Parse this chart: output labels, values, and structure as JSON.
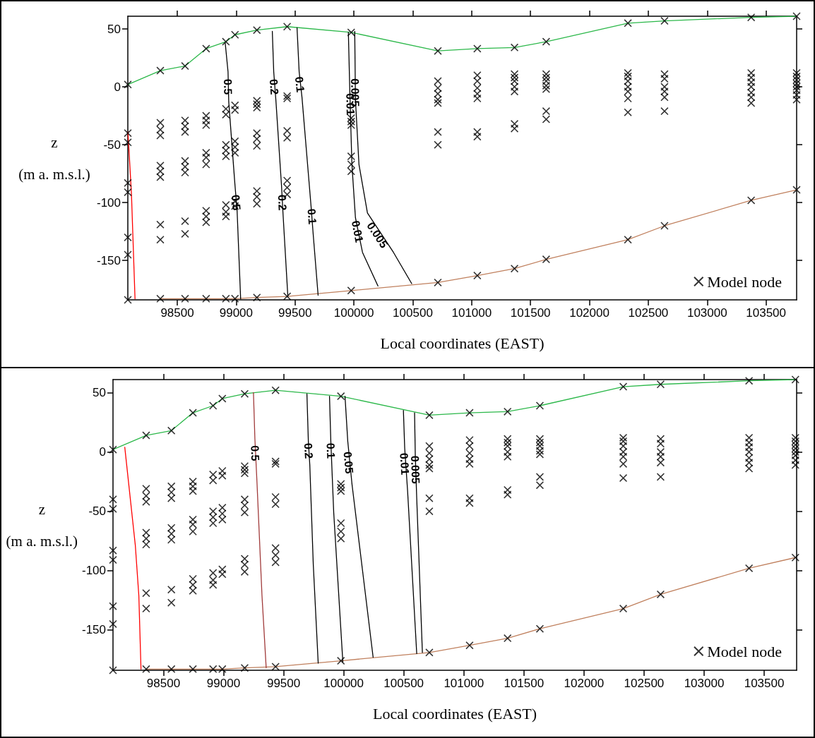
{
  "chart_data": [
    {
      "type": "line",
      "xlabel": "Local coordinates (EAST)",
      "ylabel": "z\n(m a. m.s.l.)",
      "xlim": [
        98080,
        103760
      ],
      "xticks": [
        98500,
        99000,
        99500,
        100000,
        100500,
        101000,
        101500,
        102000,
        102500,
        103000,
        103500
      ],
      "ylim": [
        -184,
        61
      ],
      "yticks": [
        -150,
        -100,
        -50,
        0,
        50
      ],
      "legend": "bottom right",
      "series": [
        {
          "name": "Model node",
          "type": "scatter",
          "marker": "cross",
          "color": "#000000",
          "x": [
            98080,
            98080,
            98080,
            98080,
            98080,
            98080,
            98080,
            98080,
            98356,
            98356,
            98356,
            98356,
            98356,
            98356,
            98356,
            98356,
            98356,
            98356,
            98566,
            98566,
            98566,
            98566,
            98566,
            98566,
            98566,
            98566,
            98566,
            98566,
            98745,
            98745,
            98745,
            98745,
            98745,
            98745,
            98745,
            98745,
            98745,
            98745,
            98745,
            98913,
            98913,
            98913,
            98913,
            98913,
            98913,
            98913,
            98913,
            98913,
            98913,
            98990,
            98990,
            98990,
            98990,
            98990,
            98990,
            98990,
            98990,
            98990,
            99176,
            99176,
            99176,
            99176,
            99176,
            99176,
            99176,
            99176,
            99176,
            99176,
            99176,
            99433,
            99433,
            99433,
            99433,
            99433,
            99433,
            99433,
            99433,
            99433,
            99977,
            99977,
            99977,
            99977,
            99977,
            99977,
            99977,
            99977,
            100713,
            100713,
            100713,
            100713,
            100713,
            100713,
            100713,
            100713,
            100713,
            101048,
            101048,
            101048,
            101048,
            101048,
            101048,
            101048,
            101048,
            101048,
            101364,
            101364,
            101364,
            101364,
            101364,
            101364,
            101364,
            101364,
            101364,
            101633,
            101633,
            101633,
            101633,
            101633,
            101633,
            101633,
            101633,
            101633,
            102327,
            102327,
            102327,
            102327,
            102327,
            102327,
            102327,
            102327,
            102327,
            102638,
            102638,
            102638,
            102638,
            102638,
            102638,
            102638,
            102638,
            103374,
            103374,
            103374,
            103374,
            103374,
            103374,
            103374,
            103374,
            103374,
            103760,
            103760,
            103760,
            103760,
            103760,
            103760,
            103760,
            103760,
            103760,
            103760
          ],
          "values": [
            2,
            -40,
            -48,
            -83,
            -91,
            -130,
            -145,
            -184,
            14,
            -31,
            -37,
            -42,
            -68,
            -73,
            -78,
            -119,
            -132,
            -183,
            18,
            -29,
            -34,
            -39,
            -64,
            -69,
            -74,
            -116,
            -127,
            -183,
            33,
            -25,
            -29,
            -33,
            -57,
            -61,
            -67,
            -107,
            -112,
            -117,
            -183,
            39,
            -19,
            -24,
            -50,
            -55,
            -60,
            -102,
            -108,
            -112,
            -183,
            45,
            -16,
            -20,
            -47,
            -52,
            -57,
            -99,
            -103,
            -183,
            49,
            -12,
            -15,
            -18,
            -40,
            -45,
            -51,
            -90,
            -95,
            -101,
            -182,
            52,
            -8,
            -10,
            -38,
            -44,
            -81,
            -87,
            -93,
            -181,
            47,
            -27,
            -30,
            -33,
            -60,
            -67,
            -73,
            -176,
            31,
            5,
            -1,
            -6,
            -11,
            -14,
            -39,
            -50,
            -169,
            33,
            10,
            5,
            -1,
            -6,
            -10,
            -39,
            -43,
            -163,
            34,
            11,
            8,
            5,
            0,
            -4,
            -32,
            -36,
            -157,
            39,
            11,
            8,
            5,
            1,
            -2,
            -21,
            -28,
            -149,
            55,
            12,
            9,
            5,
            0,
            -4,
            -10,
            -22,
            -132,
            57,
            11,
            7,
            0,
            -4,
            -9,
            -21,
            -120,
            60,
            12,
            8,
            4,
            0,
            -5,
            -9,
            -14,
            -98,
            61,
            12,
            9,
            6,
            3,
            0,
            -3,
            -7,
            -11,
            -89
          ]
        },
        {
          "color": "#2cb84a",
          "marker": "none",
          "x": [
            98080,
            98356,
            98566,
            98745,
            98913,
            98990,
            99176,
            99433,
            99977,
            100713,
            101048,
            101364,
            101633,
            102327,
            102638,
            103374,
            103760
          ],
          "values": [
            2,
            14,
            18,
            33,
            39,
            45,
            49,
            52,
            47,
            31,
            33,
            34,
            39,
            55,
            57,
            60,
            61
          ]
        },
        {
          "color": "#c0805e",
          "marker": "none",
          "x": [
            98356,
            98566,
            98745,
            98913,
            98990,
            99176,
            99433,
            99977,
            100713,
            101048,
            101364,
            101633,
            102327,
            102638,
            103374,
            103760
          ],
          "values": [
            -183,
            -183,
            -183,
            -183,
            -183,
            -182,
            -181,
            -176,
            -169,
            -163,
            -157,
            -149,
            -132,
            -120,
            -98,
            -89
          ]
        },
        {
          "color": "#ff0000",
          "marker": "none",
          "x": [
            98081,
            98111,
            98141
          ],
          "values": [
            -39,
            -93,
            -183
          ]
        },
        {
          "color": "#000000",
          "marker": "none",
          "x": [
            98907,
            98931,
            98937,
            98990,
            99008,
            99038
          ],
          "values": [
            38,
            13,
            -13,
            -85,
            -107,
            -183
          ]
        },
        {
          "color": "#000000",
          "marker": "none",
          "x": [
            99307,
            99319,
            99337,
            99385,
            99397,
            99439
          ],
          "values": [
            48,
            13,
            -11,
            -85,
            -108,
            -181
          ]
        },
        {
          "color": "#000000",
          "marker": "none",
          "x": [
            99517,
            99535,
            99559,
            99636,
            99654,
            99696
          ],
          "values": [
            51,
            13,
            -9,
            -103,
            -127,
            -180
          ]
        },
        {
          "color": "#000000",
          "marker": "none",
          "x": [
            99953,
            99965,
            99983,
            100013,
            100073,
            100204
          ],
          "values": [
            47,
            -3,
            -67,
            -113,
            -143,
            -172
          ]
        },
        {
          "color": "#000000",
          "marker": "none",
          "x": [
            100007,
            100013,
            100043,
            100115,
            100336,
            100491
          ],
          "values": [
            48,
            -11,
            -67,
            -109,
            -143,
            -170
          ]
        }
      ],
      "annotations": [
        {
          "text": "0.5",
          "x": 98930,
          "y": 0
        },
        {
          "text": "0.5",
          "x": 99000,
          "y": -100
        },
        {
          "text": "0.2",
          "x": 99322,
          "y": 0
        },
        {
          "text": "0.2",
          "x": 99392,
          "y": -100
        },
        {
          "text": "0.1",
          "x": 99540,
          "y": 2
        },
        {
          "text": "0.1",
          "x": 99645,
          "y": -112
        },
        {
          "text": "0.005",
          "x": 100010,
          "y": -5
        },
        {
          "text": "0.01",
          "x": 99970,
          "y": -15
        },
        {
          "text": "0.01",
          "x": 100030,
          "y": -125
        },
        {
          "text": "0.005",
          "x": 100200,
          "y": -128
        }
      ]
    },
    {
      "type": "line",
      "xlabel": "Local coordinates (EAST)",
      "ylabel": "z\n(m a. m.s.l.)",
      "xlim": [
        98080,
        103770
      ],
      "xticks": [
        98500,
        99000,
        99500,
        100000,
        100500,
        101000,
        101500,
        102000,
        102500,
        103000,
        103500
      ],
      "ylim": [
        -184,
        61
      ],
      "yticks": [
        -150,
        -100,
        -50,
        0,
        50
      ],
      "legend": "bottom right",
      "series": [
        {
          "name": "Model node",
          "type": "scatter",
          "marker": "cross",
          "color": "#000000",
          "x": [
            98080,
            98080,
            98080,
            98080,
            98080,
            98080,
            98080,
            98080,
            98356,
            98356,
            98356,
            98356,
            98356,
            98356,
            98356,
            98356,
            98356,
            98356,
            98566,
            98566,
            98566,
            98566,
            98566,
            98566,
            98566,
            98566,
            98566,
            98566,
            98745,
            98745,
            98745,
            98745,
            98745,
            98745,
            98745,
            98745,
            98745,
            98745,
            98745,
            98913,
            98913,
            98913,
            98913,
            98913,
            98913,
            98913,
            98913,
            98913,
            98913,
            98990,
            98990,
            98990,
            98990,
            98990,
            98990,
            98990,
            98990,
            98990,
            99176,
            99176,
            99176,
            99176,
            99176,
            99176,
            99176,
            99176,
            99176,
            99176,
            99176,
            99433,
            99433,
            99433,
            99433,
            99433,
            99433,
            99433,
            99433,
            99433,
            99977,
            99977,
            99977,
            99977,
            99977,
            99977,
            99977,
            99977,
            100713,
            100713,
            100713,
            100713,
            100713,
            100713,
            100713,
            100713,
            100713,
            101048,
            101048,
            101048,
            101048,
            101048,
            101048,
            101048,
            101048,
            101048,
            101364,
            101364,
            101364,
            101364,
            101364,
            101364,
            101364,
            101364,
            101364,
            101633,
            101633,
            101633,
            101633,
            101633,
            101633,
            101633,
            101633,
            101633,
            102327,
            102327,
            102327,
            102327,
            102327,
            102327,
            102327,
            102327,
            102327,
            102638,
            102638,
            102638,
            102638,
            102638,
            102638,
            102638,
            102638,
            103374,
            103374,
            103374,
            103374,
            103374,
            103374,
            103374,
            103374,
            103374,
            103760,
            103760,
            103760,
            103760,
            103760,
            103760,
            103760,
            103760,
            103760,
            103760
          ],
          "values": [
            2,
            -40,
            -48,
            -83,
            -91,
            -130,
            -145,
            -184,
            14,
            -31,
            -37,
            -42,
            -68,
            -73,
            -78,
            -119,
            -132,
            -183,
            18,
            -29,
            -34,
            -39,
            -64,
            -69,
            -74,
            -116,
            -127,
            -183,
            33,
            -25,
            -29,
            -33,
            -57,
            -61,
            -67,
            -107,
            -112,
            -117,
            -183,
            39,
            -19,
            -24,
            -50,
            -55,
            -60,
            -102,
            -108,
            -112,
            -183,
            45,
            -16,
            -20,
            -47,
            -52,
            -57,
            -99,
            -103,
            -183,
            49,
            -12,
            -15,
            -18,
            -40,
            -45,
            -51,
            -90,
            -95,
            -101,
            -182,
            52,
            -8,
            -10,
            -38,
            -44,
            -81,
            -87,
            -93,
            -181,
            47,
            -27,
            -30,
            -33,
            -60,
            -67,
            -73,
            -176,
            31,
            5,
            -1,
            -6,
            -11,
            -14,
            -39,
            -50,
            -169,
            33,
            10,
            5,
            -1,
            -6,
            -10,
            -39,
            -43,
            -163,
            34,
            11,
            8,
            5,
            0,
            -4,
            -32,
            -36,
            -157,
            39,
            11,
            8,
            5,
            1,
            -2,
            -21,
            -28,
            -149,
            55,
            12,
            9,
            5,
            0,
            -4,
            -10,
            -22,
            -132,
            57,
            11,
            7,
            0,
            -4,
            -9,
            -21,
            -120,
            60,
            12,
            8,
            4,
            0,
            -5,
            -9,
            -14,
            -98,
            61,
            12,
            9,
            6,
            3,
            0,
            -3,
            -7,
            -11,
            -89
          ]
        },
        {
          "color": "#2cb84a",
          "marker": "none",
          "x": [
            98080,
            98356,
            98566,
            98745,
            98913,
            98990,
            99176,
            99433,
            99977,
            100713,
            101048,
            101364,
            101633,
            102327,
            102638,
            103374,
            103760
          ],
          "values": [
            2,
            14,
            18,
            33,
            39,
            45,
            49,
            52,
            47,
            31,
            33,
            34,
            39,
            55,
            57,
            60,
            61
          ]
        },
        {
          "color": "#c0805e",
          "marker": "none",
          "x": [
            98356,
            98566,
            98745,
            98913,
            98990,
            99176,
            99433,
            99977,
            100713,
            101048,
            101364,
            101633,
            102327,
            102638,
            103374,
            103760
          ],
          "values": [
            -183,
            -183,
            -183,
            -183,
            -183,
            -182,
            -181,
            -176,
            -169,
            -163,
            -157,
            -149,
            -132,
            -120,
            -98,
            -89
          ]
        },
        {
          "color": "#ff0000",
          "marker": "none",
          "x": [
            98178,
            98266,
            98295,
            98313
          ],
          "values": [
            4,
            -79,
            -121,
            -183
          ]
        },
        {
          "color": "#a03a3a",
          "marker": "none",
          "x": [
            99249,
            99261,
            99279,
            99320,
            99355
          ],
          "values": [
            50,
            11,
            -27,
            -121,
            -182
          ]
        },
        {
          "color": "#000000",
          "marker": "none",
          "x": [
            99694,
            99706,
            99718,
            99747,
            99788
          ],
          "values": [
            49,
            9,
            -11,
            -95,
            -178
          ]
        },
        {
          "color": "#000000",
          "marker": "none",
          "x": [
            99882,
            99893,
            99917,
            99993
          ],
          "values": [
            47,
            9,
            -51,
            -177
          ]
        },
        {
          "color": "#000000",
          "marker": "none",
          "x": [
            100011,
            100034,
            100069,
            100245
          ],
          "values": [
            47,
            9,
            -27,
            -173
          ]
        },
        {
          "color": "#000000",
          "marker": "none",
          "x": [
            100497,
            100508,
            100532,
            100608
          ],
          "values": [
            35,
            3,
            -33,
            -170
          ]
        },
        {
          "color": "#000000",
          "marker": "none",
          "x": [
            100590,
            100596,
            100608,
            100655
          ],
          "values": [
            33,
            -3,
            -39,
            -169
          ]
        }
      ],
      "annotations": [
        {
          "text": "0.5",
          "x": 99263,
          "y": -1
        },
        {
          "text": "0.2",
          "x": 99708,
          "y": 1
        },
        {
          "text": "0.1",
          "x": 99893,
          "y": 1
        },
        {
          "text": "0.05",
          "x": 100040,
          "y": -9
        },
        {
          "text": "0.01",
          "x": 100507,
          "y": -10
        },
        {
          "text": "0.005",
          "x": 100597,
          "y": -15
        }
      ]
    }
  ]
}
